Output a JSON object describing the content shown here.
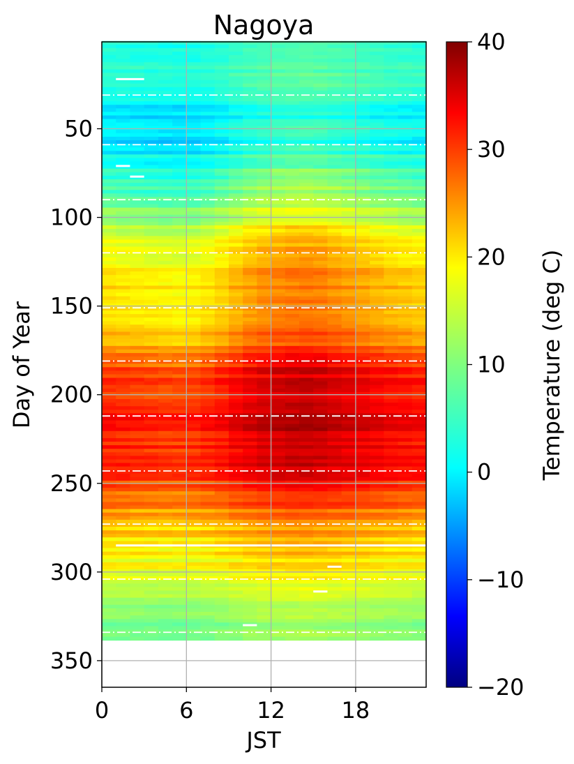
{
  "chart_data": {
    "type": "heatmap",
    "title": "Nagoya",
    "xlabel": "JST",
    "ylabel": "Day of Year",
    "xlim": [
      0,
      23
    ],
    "ylim": [
      365,
      1
    ],
    "y_inverted": true,
    "x_ticks": [
      0,
      6,
      12,
      18
    ],
    "x_tick_labels": [
      "0",
      "6",
      "12",
      "18"
    ],
    "y_ticks": [
      50,
      100,
      150,
      200,
      250,
      300,
      350
    ],
    "y_tick_labels": [
      "50",
      "100",
      "150",
      "200",
      "250",
      "300",
      "350"
    ],
    "grid": true,
    "colormap": "jet",
    "colorbar": {
      "label": "Temperature (deg C)",
      "min": -20,
      "max": 40,
      "ticks": [
        -20,
        -10,
        0,
        10,
        20,
        30,
        40
      ],
      "tick_labels": [
        "−20",
        "−10",
        "0",
        "10",
        "20",
        "30",
        "40"
      ]
    },
    "data_days": [
      1,
      337
    ],
    "daily_mean_anchors": {
      "day": [
        1,
        15,
        30,
        45,
        55,
        70,
        85,
        100,
        115,
        130,
        150,
        168,
        185,
        205,
        215,
        230,
        245,
        260,
        275,
        290,
        305,
        320,
        337
      ],
      "temp": [
        5.5,
        5,
        4.5,
        3,
        3,
        6,
        10,
        14,
        19,
        22,
        21,
        24,
        31,
        33,
        33,
        33,
        31,
        27,
        22,
        19,
        16,
        12,
        9
      ]
    },
    "diurnal_amplitude_by_hour_anchors": {
      "hour": [
        0,
        3,
        6,
        8,
        10,
        12,
        14,
        15,
        17,
        20,
        23
      ],
      "delta": [
        -1.6,
        -2.4,
        -2.8,
        -1.5,
        0.6,
        2,
        2.6,
        2.6,
        1.6,
        0,
        -1
      ]
    },
    "month_boundary_days": [
      31,
      59,
      90,
      120,
      151,
      181,
      212,
      243,
      273,
      304,
      334
    ],
    "missing_data_days": [
      22,
      71,
      77,
      285,
      297,
      311,
      330
    ]
  }
}
